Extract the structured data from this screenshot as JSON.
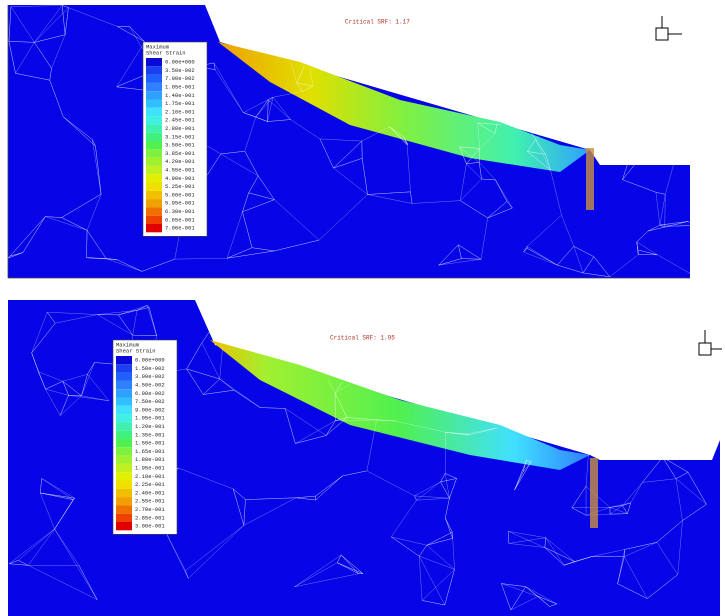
{
  "panels": [
    {
      "critical_srf": "Critical SRF: 1.17",
      "legend": {
        "title": [
          "Maximum",
          "Shear Strain"
        ],
        "labels": [
          "0.00e+000",
          "3.50e-002",
          "7.00e-002",
          "1.05e-001",
          "1.40e-001",
          "1.75e-001",
          "2.10e-001",
          "2.45e-001",
          "2.80e-001",
          "3.15e-001",
          "3.50e-001",
          "3.85e-001",
          "4.20e-001",
          "4.55e-001",
          "4.90e-001",
          "5.25e-001",
          "5.60e-001",
          "5.95e-001",
          "6.30e-001",
          "6.65e-001",
          "7.00e-001"
        ]
      }
    },
    {
      "critical_srf": "Critical SRF: 1.95",
      "legend": {
        "title": [
          "Maximum",
          "Shear Strain"
        ],
        "labels": [
          "0.00e+000",
          "1.50e-002",
          "3.00e-002",
          "4.50e-002",
          "6.00e-002",
          "7.50e-002",
          "9.00e-002",
          "1.05e-001",
          "1.20e-001",
          "1.35e-001",
          "1.50e-001",
          "1.65e-001",
          "1.80e-001",
          "1.95e-001",
          "2.10e-001",
          "2.25e-001",
          "2.40e-001",
          "2.55e-001",
          "2.70e-001",
          "2.85e-001",
          "3.00e-001"
        ]
      }
    }
  ],
  "legend_colors": [
    "#0a0ad8",
    "#1a40f0",
    "#2060ff",
    "#3080ff",
    "#30a0ff",
    "#30c0ff",
    "#40e0ff",
    "#40f0e0",
    "#40f0b0",
    "#40f080",
    "#50f050",
    "#80f040",
    "#a0f030",
    "#c0f020",
    "#e0f000",
    "#f0e000",
    "#f0c000",
    "#f0a000",
    "#f07000",
    "#f04000",
    "#e00000"
  ]
}
